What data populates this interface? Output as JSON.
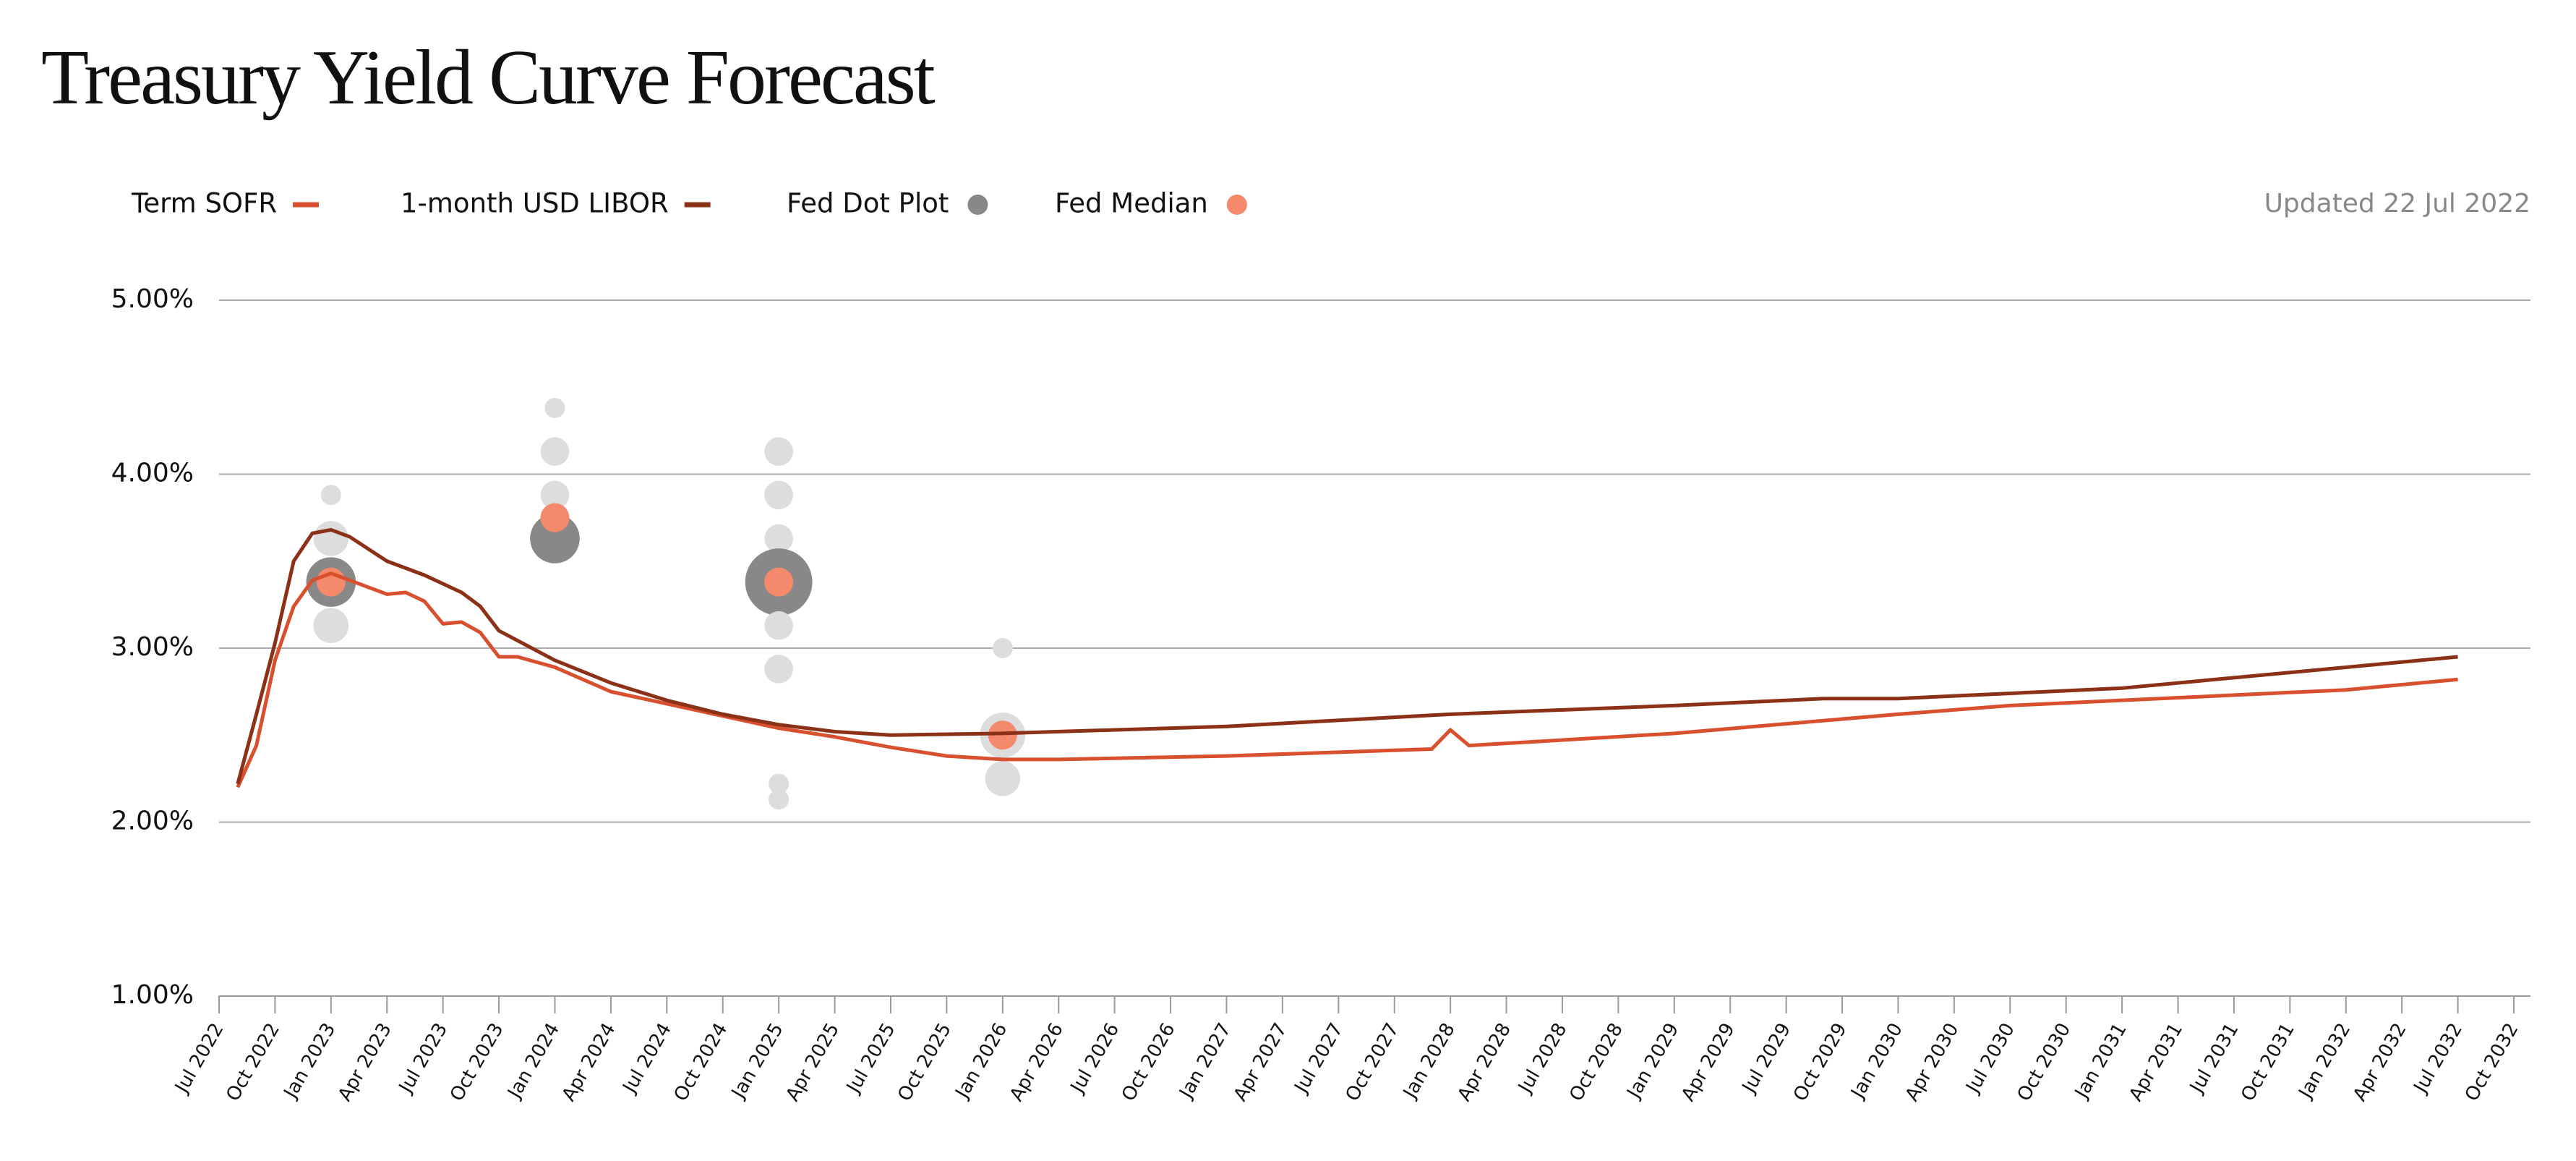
{
  "chart_data": {
    "type": "line",
    "title": "Treasury Yield Curve Forecast",
    "note": "Updated 22 Jul 2022",
    "xlim": [
      "Jul 2022",
      "Oct 2032"
    ],
    "xticks": [
      "Jul 2022",
      "Oct 2022",
      "Jan 2023",
      "Apr 2023",
      "Jul 2023",
      "Oct 2023",
      "Jan 2024",
      "Apr 2024",
      "Jul 2024",
      "Oct 2024",
      "Jan 2025",
      "Apr 2025",
      "Jul 2025",
      "Oct 2025",
      "Jan 2026",
      "Apr 2026",
      "Jul 2026",
      "Oct 2026",
      "Jan 2027",
      "Apr 2027",
      "Jul 2027",
      "Oct 2027",
      "Jan 2028",
      "Apr 2028",
      "Jul 2028",
      "Oct 2028",
      "Jan 2029",
      "Apr 2029",
      "Jul 2029",
      "Oct 2029",
      "Jan 2030",
      "Apr 2030",
      "Jul 2030",
      "Oct 2030",
      "Jan 2031",
      "Apr 2031",
      "Jul 2031",
      "Oct 2031",
      "Jan 2032",
      "Apr 2032",
      "Jul 2032",
      "Oct 2032"
    ],
    "ylim": [
      1,
      5
    ],
    "yticks": [
      {
        "value": 1,
        "label": "1.00%"
      },
      {
        "value": 2,
        "label": "2.00%"
      },
      {
        "value": 3,
        "label": "3.00%"
      },
      {
        "value": 4,
        "label": "4.00%"
      },
      {
        "value": 5,
        "label": "5.00%"
      }
    ],
    "grid": true,
    "series": [
      {
        "name": "Term SOFR",
        "type": "line",
        "color": "#d9502f",
        "x": [
          "Aug 2022",
          "Sep 2022",
          "Oct 2022",
          "Nov 2022",
          "Dec 2022",
          "Jan 2023",
          "Feb 2023",
          "Mar 2023",
          "Apr 2023",
          "May 2023",
          "Jun 2023",
          "Jul 2023",
          "Aug 2023",
          "Sep 2023",
          "Oct 2023",
          "Nov 2023",
          "Jan 2024",
          "Apr 2024",
          "Jul 2024",
          "Oct 2024",
          "Jan 2025",
          "Apr 2025",
          "Jul 2025",
          "Oct 2025",
          "Jan 2026",
          "Apr 2026",
          "Jan 2027",
          "Dec 2027",
          "Jan 2028",
          "Feb 2028",
          "Jan 2029",
          "Jan 2030",
          "Jul 2030",
          "Jan 2031",
          "Jan 2032",
          "Jul 2032"
        ],
        "values": [
          2.2,
          2.44,
          2.93,
          3.24,
          3.39,
          3.43,
          3.39,
          3.35,
          3.31,
          3.32,
          3.27,
          3.14,
          3.15,
          3.09,
          2.95,
          2.95,
          2.89,
          2.75,
          2.68,
          2.61,
          2.54,
          2.49,
          2.43,
          2.38,
          2.36,
          2.36,
          2.38,
          2.42,
          2.53,
          2.44,
          2.51,
          2.62,
          2.67,
          2.7,
          2.76,
          2.82
        ]
      },
      {
        "name": "1-month USD LIBOR",
        "type": "line",
        "color": "#8b3118",
        "x": [
          "Aug 2022",
          "Sep 2022",
          "Oct 2022",
          "Nov 2022",
          "Dec 2022",
          "Jan 2023",
          "Feb 2023",
          "Mar 2023",
          "Apr 2023",
          "Jun 2023",
          "Aug 2023",
          "Sep 2023",
          "Oct 2023",
          "Jan 2024",
          "Apr 2024",
          "Jul 2024",
          "Oct 2024",
          "Jan 2025",
          "Apr 2025",
          "Jul 2025",
          "Jan 2026",
          "Jan 2027",
          "Jan 2028",
          "Jan 2029",
          "Sep 2029",
          "Jan 2030",
          "Jan 2031",
          "Jan 2032",
          "Jul 2032"
        ],
        "values": [
          2.22,
          2.62,
          3.03,
          3.5,
          3.66,
          3.68,
          3.64,
          3.57,
          3.5,
          3.42,
          3.32,
          3.24,
          3.1,
          2.93,
          2.8,
          2.7,
          2.62,
          2.56,
          2.52,
          2.5,
          2.51,
          2.55,
          2.62,
          2.67,
          2.71,
          2.71,
          2.77,
          2.89,
          2.95
        ]
      },
      {
        "name": "Fed Dot Plot",
        "type": "bubble",
        "color": "#888888",
        "x": [
          "Jan 2023",
          "Jan 2023",
          "Jan 2023",
          "Jan 2023",
          "Jan 2024",
          "Jan 2024",
          "Jan 2024",
          "Jan 2024",
          "Jan 2025",
          "Jan 2025",
          "Jan 2025",
          "Jan 2025",
          "Jan 2025",
          "Jan 2025",
          "Jan 2025",
          "Jan 2025",
          "Jan 2026",
          "Jan 2026",
          "Jan 2026"
        ],
        "values": [
          3.88,
          3.63,
          3.38,
          3.13,
          4.38,
          4.13,
          3.88,
          3.63,
          4.13,
          3.88,
          3.63,
          3.38,
          3.13,
          2.88,
          2.22,
          2.13,
          3.0,
          2.5,
          2.25
        ],
        "sizes": [
          1,
          3,
          6,
          3,
          1,
          2,
          2,
          6,
          2,
          2,
          2,
          11,
          2,
          2,
          1,
          1,
          1,
          5,
          3
        ],
        "colors": [
          "#dddddd",
          "#dddddd",
          "#888888",
          "#dddddd",
          "#dddddd",
          "#dddddd",
          "#dddddd",
          "#888888",
          "#dddddd",
          "#dddddd",
          "#dddddd",
          "#888888",
          "#dddddd",
          "#dddddd",
          "#dddddd",
          "#dddddd",
          "#dddddd",
          "#dddddd",
          "#dddddd"
        ]
      },
      {
        "name": "Fed Median",
        "type": "dot",
        "color": "#f4896b",
        "x": [
          "Jan 2023",
          "Jan 2024",
          "Jan 2025",
          "Jan 2026"
        ],
        "values": [
          3.38,
          3.75,
          3.38,
          2.5
        ]
      }
    ]
  }
}
